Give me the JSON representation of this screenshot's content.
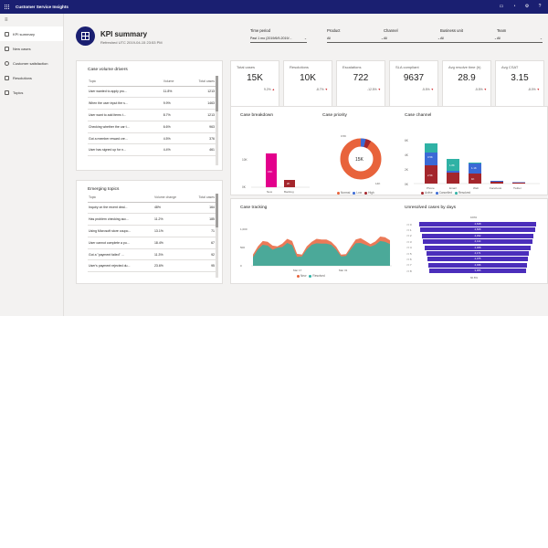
{
  "app": {
    "title": "Customer Service Insights"
  },
  "top_icons": [
    "chat-icon",
    "bell-icon",
    "settings-icon",
    "help-icon"
  ],
  "sidebar": {
    "items": [
      {
        "label": "KPI summary",
        "active": true
      },
      {
        "label": "New cases"
      },
      {
        "label": "Customer satisfaction"
      },
      {
        "label": "Resolutions"
      },
      {
        "label": "Topics"
      }
    ]
  },
  "header": {
    "title": "KPI summary",
    "refreshed": "Refreshed UTC 2019-04-15 23:53 PM"
  },
  "filters": [
    {
      "label": "Time period",
      "value": "Past 1 mo (2019/6/9-2019/..."
    },
    {
      "label": "Product",
      "value": "All"
    },
    {
      "label": "Channel",
      "value": "All"
    },
    {
      "label": "Business unit",
      "value": "All"
    },
    {
      "label": "Team",
      "value": "All"
    }
  ],
  "case_volume_drivers": {
    "title": "Case volume drivers",
    "columns": [
      "Topic",
      "Volume",
      "Total cases"
    ],
    "rows": [
      [
        "User wanted to apply pro...",
        "11.8%",
        "1213"
      ],
      [
        "When the user input the s...",
        "9.9%",
        "1463"
      ],
      [
        "User want to add items t...",
        "8.7%",
        "1213"
      ],
      [
        "Checking whether the car t...",
        "6.6%",
        "963"
      ],
      [
        "Got a member reward cre...",
        "4.5%",
        "376"
      ],
      [
        "User has signed up for n...",
        "4.4%",
        "461"
      ]
    ]
  },
  "emerging_topics": {
    "title": "Emerging topics",
    "columns": [
      "Topic",
      "Volume change",
      "Total cases"
    ],
    "rows": [
      [
        "Inquiry on the recent deal...",
        "48%",
        "164"
      ],
      [
        "Has problem checking acc...",
        "11.2%",
        "185"
      ],
      [
        "Using Microsoft store coupo...",
        "13.1%",
        "71"
      ],
      [
        "User cannot complete a pu...",
        "18.4%",
        "67"
      ],
      [
        "Got a \"payment failed\" ...",
        "11.3%",
        "92"
      ],
      [
        "User's payment rejected du...",
        "23.6%",
        "95"
      ]
    ]
  },
  "kpis": [
    {
      "label": "Total cases",
      "value": "15K",
      "delta": "9.2%",
      "dir": "up"
    },
    {
      "label": "Resolutions",
      "value": "10K",
      "delta": "-8.7%",
      "dir": "down"
    },
    {
      "label": "Escalations",
      "value": "722",
      "delta": "-12.5%",
      "dir": "down"
    },
    {
      "label": "SLA compliant",
      "value": "9637",
      "delta": "-5.5%",
      "dir": "down"
    },
    {
      "label": "Avg resolve time (h)",
      "value": "28.9",
      "delta": "-5.5%",
      "dir": "down"
    },
    {
      "label": "Avg CSAT",
      "value": "3.15",
      "delta": "-8.0%",
      "dir": "down"
    }
  ],
  "colors": {
    "topbar": "#1a1f71",
    "magenta": "#e3008c",
    "orange": "#e8633b",
    "blue": "#3b6ad6",
    "teal": "#0f8a8a",
    "purple": "#4b2ebb",
    "dark_red": "#a4262c",
    "series_green": "#2fb2a5",
    "series_orange": "#e8633b"
  },
  "charts": {
    "case_breakdown": {
      "title": "Case breakdown",
      "type": "bar",
      "y_ticks": [
        "15K",
        "10K",
        "5K",
        "0K"
      ],
      "categories": [
        "New",
        "Backlog"
      ],
      "values": [
        15,
        2
      ],
      "bar_labels": [
        "15K",
        "2K"
      ]
    },
    "case_priority": {
      "title": "Case priority",
      "type": "pie",
      "center_label": "15K",
      "slices": [
        {
          "name": "Normal",
          "value": 93,
          "color": "#e8633b"
        },
        {
          "name": "Low",
          "value": 3,
          "color": "#3b6ad6"
        },
        {
          "name": "High",
          "value": 4,
          "color": "#a4262c"
        }
      ],
      "outer_labels": [
        "0.5K",
        "14K"
      ]
    },
    "case_channel": {
      "title": "Case channel",
      "type": "bar",
      "categories": [
        "Phone",
        "Email",
        "Web",
        "Facebook",
        "Twitter"
      ],
      "y_ticks": [
        "6K",
        "4K",
        "2K",
        "0K"
      ],
      "series": [
        {
          "name": "Active",
          "values": [
            2.1,
            1.3,
            1.1,
            0.1,
            0.1
          ],
          "color": "#a4262c"
        },
        {
          "name": "Cancelled",
          "values": [
            1.7,
            0.2,
            1.3,
            0.1,
            0.05
          ],
          "color": "#3b6ad6"
        },
        {
          "name": "Resolved",
          "values": [
            1.3,
            1.6,
            0.1,
            0,
            0
          ],
          "color": "#2fb2a5"
        }
      ],
      "bar_labels": [
        "3.5K",
        "2.5K",
        "1.8K",
        "1.1K",
        "1K",
        "1.3K"
      ]
    },
    "case_tracking": {
      "title": "Case tracking",
      "type": "area",
      "y_ticks": [
        "1,000",
        "500",
        "0"
      ],
      "x_ticks": [
        "Mar 17",
        "Mar 31"
      ],
      "legend": [
        {
          "name": "New",
          "color": "#e8633b"
        },
        {
          "name": "Resolved",
          "color": "#2fb2a5"
        }
      ],
      "series": [
        {
          "name": "New",
          "values": [
            300,
            520,
            660,
            640,
            540,
            520,
            590,
            720,
            660,
            320,
            300,
            520,
            640,
            720,
            700,
            700,
            640,
            510,
            300,
            310,
            510,
            700,
            740,
            660,
            580,
            650,
            780,
            760,
            680
          ]
        },
        {
          "name": "Resolved",
          "values": [
            230,
            440,
            560,
            540,
            430,
            480,
            500,
            610,
            550,
            240,
            250,
            440,
            560,
            600,
            590,
            590,
            560,
            430,
            250,
            260,
            440,
            600,
            610,
            560,
            510,
            560,
            660,
            640,
            580
          ]
        }
      ]
    },
    "unresolved": {
      "title": "Unresolved cases by days",
      "type": "bar",
      "top_label": "100%",
      "bottom_label": "60.8%",
      "rows": [
        {
          "label": "<= 0",
          "value": "4,648",
          "pct": 100
        },
        {
          "label": "<= 1",
          "value": "4,608",
          "pct": 98
        },
        {
          "label": "<= 2",
          "value": "4,452",
          "pct": 95
        },
        {
          "label": "<= 3",
          "value": "4,414",
          "pct": 93
        },
        {
          "label": "<= 4",
          "value": "4,308",
          "pct": 91
        },
        {
          "label": "<= 5",
          "value": "4,171",
          "pct": 88
        },
        {
          "label": "<= 6",
          "value": "4,075",
          "pct": 86
        },
        {
          "label": "<= 7",
          "value": "4,036",
          "pct": 85
        },
        {
          "label": "<= 8",
          "value": "3,955",
          "pct": 83
        }
      ]
    }
  }
}
